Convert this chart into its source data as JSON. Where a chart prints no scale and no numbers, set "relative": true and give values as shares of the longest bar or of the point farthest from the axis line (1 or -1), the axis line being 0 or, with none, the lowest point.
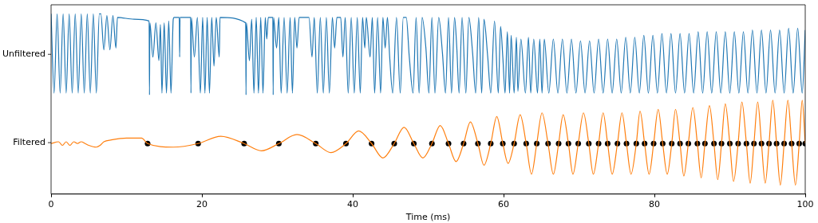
{
  "chart_data": {
    "type": "line",
    "xlabel": "Time (ms)",
    "xlim": [
      0,
      100
    ],
    "xticks": [
      0,
      20,
      40,
      60,
      80,
      100
    ],
    "relative": true,
    "series": [
      {
        "name": "Unfiltered",
        "color": "#1f77b4",
        "marker": "none",
        "x": [
          0,
          0.4,
          0.8,
          1.2,
          1.6,
          2.0,
          2.4,
          2.8,
          3.2,
          3.6,
          4.0,
          4.4,
          4.8,
          5.2,
          5.6,
          6.0,
          6.4,
          6.6,
          7.0,
          7.4,
          7.8,
          8.2,
          8.6,
          8.8,
          11,
          13.0,
          13.05,
          13.1,
          13.5,
          13.9,
          14.3,
          14.5,
          14.7,
          15.0,
          15.3,
          15.6,
          15.9,
          16.2,
          16.3,
          17.0,
          17.05,
          17.1,
          18.5,
          18.55,
          18.6,
          19.0,
          19.4,
          19.8,
          20.1,
          20.4,
          20.7,
          21.0,
          21.3,
          21.6,
          21.9,
          22.3,
          22.4,
          25.8,
          25.85,
          25.9,
          26.3,
          26.6,
          26.9,
          27.2,
          27.5,
          27.8,
          28.1,
          28.4,
          28.6,
          28.8,
          29.4,
          29.45,
          29.5,
          29.9,
          30.2,
          30.5,
          30.9,
          31.3,
          31.7,
          32.0,
          32.3,
          32.6,
          32.9,
          34.2,
          34.6,
          34.9,
          35.3,
          35.7,
          36.1,
          36.5,
          36.9,
          37.3,
          37.6,
          37.9,
          38.4,
          38.7,
          39.0,
          39.4,
          39.8,
          40.2,
          40.6,
          41.0,
          41.3,
          41.6,
          41.8,
          42.3,
          42.6,
          42.9,
          43.3,
          43.7,
          44.0,
          44.3,
          44.6,
          44.9,
          45.3,
          45.8,
          46.3,
          46.7,
          47.1,
          47.5,
          48.0,
          48.4,
          48.8,
          49.2,
          49.7,
          50.1,
          50.5,
          50.9,
          51.4,
          51.9,
          52.3,
          52.7,
          53.1,
          53.5,
          53.8,
          54.1,
          54.5,
          55.0,
          55.4,
          55.9,
          56.3,
          56.7,
          57.1,
          57.4,
          57.9,
          58.3,
          58.8,
          59.3,
          59.6,
          59.9,
          60.2,
          60.5,
          60.8,
          61.0,
          61.4,
          61.7,
          61.9,
          62.3,
          62.9,
          63.3,
          63.6,
          64.0,
          64.5,
          64.8,
          65.1,
          65.4,
          66.0,
          66.6,
          67.2,
          67.8,
          68.4,
          69.0,
          69.6,
          70.2,
          70.8,
          71.4,
          72.0,
          72.6,
          73.2,
          73.8,
          74.4,
          75.0,
          75.6,
          76.2,
          76.8,
          77.4,
          78.0,
          78.6,
          79.2,
          79.8,
          80.4,
          81.0,
          81.6,
          82.2,
          82.8,
          83.4,
          84.0,
          84.6,
          85.2,
          85.8,
          86.4,
          87.0,
          87.6,
          88.2,
          88.8,
          89.4,
          90.0,
          90.6,
          91.2,
          91.8,
          92.4,
          93.0,
          93.6,
          94.2,
          94.8,
          95.4,
          96.0,
          96.6,
          97.2,
          97.8,
          98.4,
          99.0,
          99.6,
          100
        ],
        "values": [
          1,
          0.56,
          1,
          0.56,
          1,
          0.56,
          1,
          0.56,
          1,
          0.56,
          1,
          0.56,
          1,
          0.56,
          1,
          0.56,
          1,
          1,
          0.8,
          0.99,
          0.8,
          0.99,
          0.81,
          0.98,
          0.97,
          0.96,
          0.55,
          0.95,
          0.76,
          0.95,
          0.74,
          0.94,
          0.56,
          0.95,
          0.56,
          0.96,
          0.56,
          0.97,
          0.98,
          0.98,
          0.76,
          0.98,
          0.98,
          0.56,
          0.98,
          0.76,
          0.98,
          0.56,
          0.98,
          0.56,
          0.98,
          0.56,
          0.98,
          0.71,
          0.98,
          0.76,
          0.98,
          0.95,
          0.55,
          0.95,
          0.74,
          0.97,
          0.56,
          0.98,
          0.56,
          0.98,
          0.56,
          0.98,
          0.86,
          0.98,
          0.98,
          0.55,
          0.98,
          0.81,
          0.98,
          0.56,
          0.98,
          0.56,
          0.98,
          0.56,
          0.98,
          0.81,
          0.98,
          0.98,
          0.76,
          0.98,
          0.56,
          0.98,
          0.56,
          0.98,
          0.56,
          0.98,
          0.81,
          0.98,
          0.98,
          0.76,
          0.98,
          0.56,
          0.98,
          0.56,
          0.98,
          0.56,
          0.98,
          0.81,
          0.98,
          0.76,
          0.98,
          0.56,
          0.98,
          0.56,
          0.98,
          0.81,
          0.98,
          0.76,
          0.56,
          0.98,
          0.56,
          0.98,
          0.98,
          0.76,
          0.56,
          0.98,
          0.56,
          0.98,
          0.81,
          0.56,
          0.98,
          0.56,
          0.98,
          0.78,
          0.56,
          0.98,
          0.56,
          0.98,
          0.81,
          0.56,
          0.98,
          0.56,
          0.98,
          0.78,
          0.56,
          0.98,
          0.56,
          0.97,
          0.76,
          0.56,
          0.96,
          0.56,
          0.93,
          0.76,
          0.56,
          0.9,
          0.56,
          0.88,
          0.56,
          0.87,
          0.57,
          0.86,
          0.56,
          0.87,
          0.56,
          0.86,
          0.56,
          0.86,
          0.56,
          0.86,
          0.56,
          0.86,
          0.56,
          0.86,
          0.56,
          0.86,
          0.56,
          0.85,
          0.56,
          0.85,
          0.56,
          0.86,
          0.56,
          0.86,
          0.56,
          0.86,
          0.56,
          0.87,
          0.56,
          0.87,
          0.56,
          0.88,
          0.56,
          0.88,
          0.56,
          0.89,
          0.56,
          0.89,
          0.56,
          0.89,
          0.56,
          0.89,
          0.56,
          0.9,
          0.56,
          0.9,
          0.56,
          0.9,
          0.56,
          0.9,
          0.56,
          0.9,
          0.56,
          0.9,
          0.56,
          0.91,
          0.56,
          0.91,
          0.56,
          0.91,
          0.56,
          0.91,
          0.56,
          0.92,
          0.56,
          0.92,
          0.56,
          0.91
        ]
      },
      {
        "name": "Filtered",
        "color": "#ff7f0e",
        "marker": "none",
        "x": [
          0,
          1,
          1.5,
          2,
          2.5,
          3,
          3.5,
          4,
          4.5,
          5,
          6,
          6.5,
          7,
          8,
          10,
          12,
          12.8,
          16.2,
          19.5,
          22.5,
          25.6,
          27.9,
          30.2,
          32.6,
          35.1,
          37.1,
          39.1,
          40.8,
          42.5,
          44.0,
          45.5,
          46.8,
          48.1,
          49.3,
          50.5,
          51.6,
          52.7,
          53.7,
          54.7,
          55.6,
          56.6,
          57.4,
          58.3,
          59.1,
          59.9,
          60.6,
          61.4,
          62.2,
          63.0,
          63.7,
          64.4,
          65.1,
          65.9,
          66.6,
          67.3,
          67.9,
          68.6,
          69.2,
          69.9,
          70.6,
          71.3,
          71.9,
          72.6,
          73.2,
          73.8,
          74.4,
          75.1,
          75.7,
          76.3,
          76.9,
          77.6,
          78.1,
          78.7,
          79.3,
          79.9,
          80.5,
          81.1,
          81.7,
          82.3,
          82.8,
          83.4,
          83.9,
          84.5,
          85.1,
          85.7,
          86.2,
          86.7,
          87.3,
          87.9,
          88.4,
          88.9,
          89.4,
          90.0,
          90.5,
          91.1,
          91.6,
          92.2,
          92.7,
          93.2,
          93.7,
          94.2,
          94.7,
          95.2,
          95.7,
          96.2,
          96.7,
          97.2,
          97.7,
          98.2,
          98.7,
          99.2,
          99.6,
          100
        ],
        "values": [
          0.28,
          0.29,
          0.27,
          0.29,
          0.27,
          0.29,
          0.28,
          0.29,
          0.28,
          0.27,
          0.26,
          0.27,
          0.29,
          0.3,
          0.31,
          0.31,
          0.28,
          0.26,
          0.28,
          0.32,
          0.28,
          0.24,
          0.28,
          0.33,
          0.28,
          0.23,
          0.28,
          0.35,
          0.28,
          0.2,
          0.28,
          0.37,
          0.28,
          0.2,
          0.28,
          0.38,
          0.28,
          0.18,
          0.28,
          0.4,
          0.28,
          0.16,
          0.28,
          0.43,
          0.28,
          0.17,
          0.28,
          0.44,
          0.28,
          0.11,
          0.28,
          0.45,
          0.28,
          0.11,
          0.28,
          0.44,
          0.28,
          0.11,
          0.28,
          0.45,
          0.28,
          0.11,
          0.28,
          0.45,
          0.28,
          0.11,
          0.28,
          0.45,
          0.28,
          0.11,
          0.28,
          0.46,
          0.28,
          0.11,
          0.28,
          0.47,
          0.28,
          0.11,
          0.28,
          0.47,
          0.28,
          0.1,
          0.28,
          0.48,
          0.28,
          0.09,
          0.28,
          0.49,
          0.28,
          0.08,
          0.28,
          0.5,
          0.28,
          0.07,
          0.28,
          0.51,
          0.28,
          0.06,
          0.28,
          0.51,
          0.28,
          0.06,
          0.28,
          0.52,
          0.28,
          0.05,
          0.28,
          0.52,
          0.28,
          0.05,
          0.28,
          0.52,
          0.28
        ]
      },
      {
        "type": "scatter",
        "color": "#000000",
        "marker": "circle",
        "x": [
          12.8,
          19.5,
          25.6,
          30.2,
          35.1,
          39.1,
          42.5,
          45.5,
          48.1,
          50.5,
          52.7,
          54.7,
          56.6,
          58.3,
          59.9,
          61.4,
          63.0,
          64.4,
          65.9,
          67.3,
          68.6,
          69.9,
          71.3,
          72.6,
          73.8,
          75.1,
          76.3,
          77.6,
          78.7,
          79.9,
          81.1,
          82.3,
          83.4,
          84.5,
          85.7,
          86.7,
          87.9,
          88.9,
          90.0,
          91.1,
          92.2,
          93.2,
          94.2,
          95.2,
          96.2,
          97.2,
          98.2,
          99.2,
          100
        ],
        "values": [
          0.28,
          0.28,
          0.28,
          0.28,
          0.28,
          0.28,
          0.28,
          0.28,
          0.28,
          0.28,
          0.28,
          0.28,
          0.28,
          0.28,
          0.28,
          0.28,
          0.28,
          0.28,
          0.28,
          0.28,
          0.28,
          0.28,
          0.28,
          0.28,
          0.28,
          0.28,
          0.28,
          0.28,
          0.28,
          0.28,
          0.28,
          0.28,
          0.28,
          0.28,
          0.28,
          0.28,
          0.28,
          0.28,
          0.28,
          0.28,
          0.28,
          0.28,
          0.28,
          0.28,
          0.28,
          0.28,
          0.28,
          0.28,
          0.28
        ]
      }
    ]
  }
}
